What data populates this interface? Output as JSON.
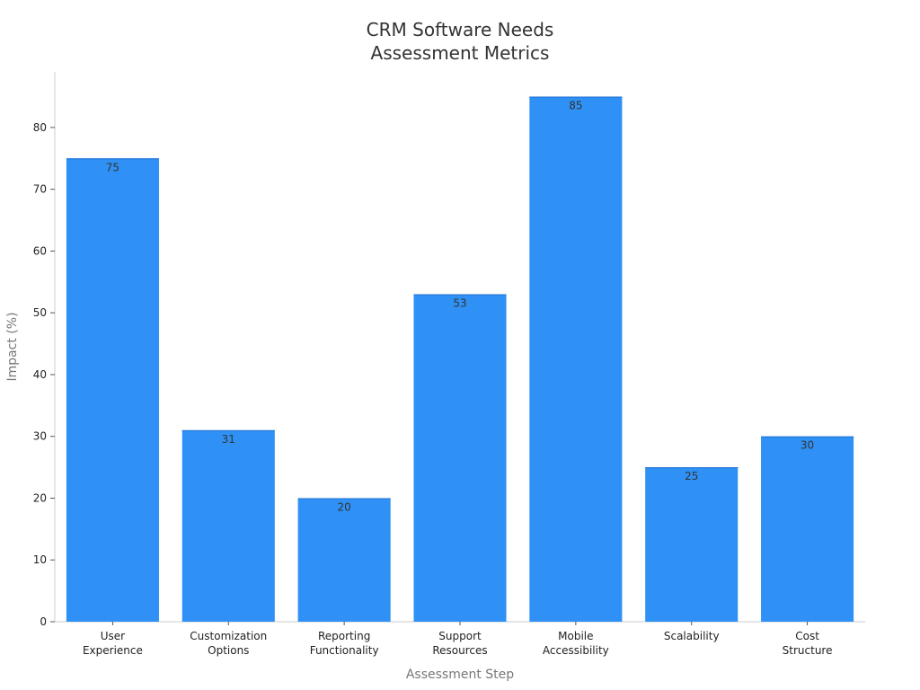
{
  "chart_data": {
    "type": "bar",
    "title_lines": [
      "CRM Software Needs",
      "Assessment Metrics"
    ],
    "xlabel": "Assessment Step",
    "ylabel": "Impact (%)",
    "ylim": [
      0,
      89
    ],
    "yticks": [
      0,
      10,
      20,
      30,
      40,
      50,
      60,
      70,
      80
    ],
    "categories": [
      [
        "User",
        "Experience"
      ],
      [
        "Customization",
        "Options"
      ],
      [
        "Reporting",
        "Functionality"
      ],
      [
        "Support",
        "Resources"
      ],
      [
        "Mobile",
        "Accessibility"
      ],
      [
        "Scalability"
      ],
      [
        "Cost",
        "Structure"
      ]
    ],
    "values": [
      75,
      31,
      20,
      53,
      85,
      25,
      30
    ],
    "bar_color": "#2f91f5",
    "grid": false,
    "legend": "none"
  }
}
